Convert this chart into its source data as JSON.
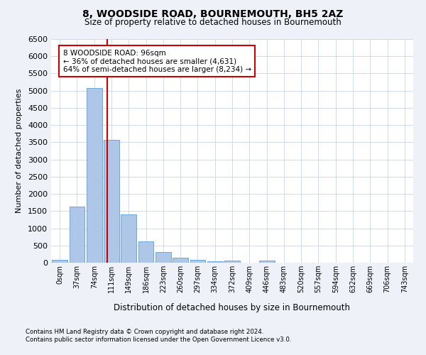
{
  "title1": "8, WOODSIDE ROAD, BOURNEMOUTH, BH5 2AZ",
  "title2": "Size of property relative to detached houses in Bournemouth",
  "xlabel": "Distribution of detached houses by size in Bournemouth",
  "ylabel": "Number of detached properties",
  "categories": [
    "0sqm",
    "37sqm",
    "74sqm",
    "111sqm",
    "149sqm",
    "186sqm",
    "223sqm",
    "260sqm",
    "297sqm",
    "334sqm",
    "372sqm",
    "409sqm",
    "446sqm",
    "483sqm",
    "520sqm",
    "557sqm",
    "594sqm",
    "632sqm",
    "669sqm",
    "706sqm",
    "743sqm"
  ],
  "values": [
    75,
    1630,
    5080,
    3580,
    1400,
    615,
    310,
    150,
    80,
    45,
    65,
    0,
    65,
    0,
    0,
    0,
    0,
    0,
    0,
    0,
    0
  ],
  "bar_color": "#aec6e8",
  "bar_edgecolor": "#5a9fd4",
  "vline_x": 2.75,
  "vline_color": "#cc0000",
  "annotation_text": "8 WOODSIDE ROAD: 96sqm\n← 36% of detached houses are smaller (4,631)\n64% of semi-detached houses are larger (8,234) →",
  "annotation_box_color": "#ffffff",
  "annotation_box_edgecolor": "#cc0000",
  "ylim": [
    0,
    6500
  ],
  "yticks": [
    0,
    500,
    1000,
    1500,
    2000,
    2500,
    3000,
    3500,
    4000,
    4500,
    5000,
    5500,
    6000,
    6500
  ],
  "footnote1": "Contains HM Land Registry data © Crown copyright and database right 2024.",
  "footnote2": "Contains public sector information licensed under the Open Government Licence v3.0.",
  "background_color": "#eef2f8",
  "plot_bg_color": "#ffffff",
  "grid_color": "#c8d4e8"
}
